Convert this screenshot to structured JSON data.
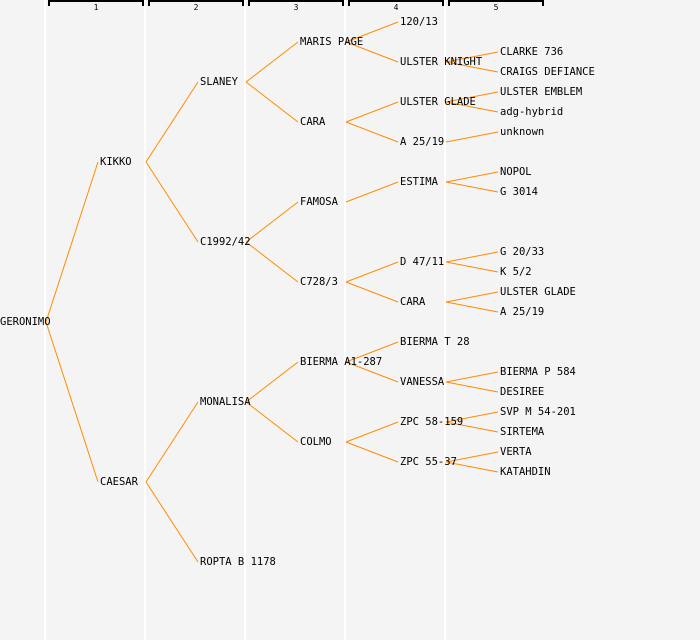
{
  "generation_labels": [
    "1",
    "2",
    "3",
    "4",
    "5"
  ],
  "line_color": "#ff8c00",
  "nodes": [
    {
      "id": 0,
      "name": "GERONIMO",
      "gen": 0,
      "parent": null
    },
    {
      "id": 1,
      "name": "KIKKO",
      "gen": 1,
      "parent": 0
    },
    {
      "id": 2,
      "name": "CAESAR",
      "gen": 1,
      "parent": 0
    },
    {
      "id": 3,
      "name": "SLANEY",
      "gen": 2,
      "parent": 1
    },
    {
      "id": 4,
      "name": "C1992/42",
      "gen": 2,
      "parent": 1
    },
    {
      "id": 5,
      "name": "MONALISA",
      "gen": 2,
      "parent": 2
    },
    {
      "id": 6,
      "name": "ROPTA B 1178",
      "gen": 2,
      "parent": 2
    },
    {
      "id": 7,
      "name": "MARIS PAGE",
      "gen": 3,
      "parent": 3
    },
    {
      "id": 8,
      "name": "CARA",
      "gen": 3,
      "parent": 3
    },
    {
      "id": 9,
      "name": "FAMOSA",
      "gen": 3,
      "parent": 4
    },
    {
      "id": 10,
      "name": "C728/3",
      "gen": 3,
      "parent": 4
    },
    {
      "id": 11,
      "name": "BIERMA A1-287",
      "gen": 3,
      "parent": 5
    },
    {
      "id": 12,
      "name": "COLMO",
      "gen": 3,
      "parent": 5
    },
    {
      "id": 13,
      "name": "120/13",
      "gen": 4,
      "parent": 7
    },
    {
      "id": 14,
      "name": "ULSTER KNIGHT",
      "gen": 4,
      "parent": 7
    },
    {
      "id": 15,
      "name": "ULSTER GLADE",
      "gen": 4,
      "parent": 8
    },
    {
      "id": 16,
      "name": "A 25/19",
      "gen": 4,
      "parent": 8
    },
    {
      "id": 17,
      "name": "ESTIMA",
      "gen": 4,
      "parent": 9
    },
    {
      "id": 18,
      "name": "D 47/11",
      "gen": 4,
      "parent": 10
    },
    {
      "id": 19,
      "name": "CARA",
      "gen": 4,
      "parent": 10
    },
    {
      "id": 20,
      "name": "BIERMA T 28",
      "gen": 4,
      "parent": 11
    },
    {
      "id": 21,
      "name": "VANESSA",
      "gen": 4,
      "parent": 11
    },
    {
      "id": 22,
      "name": "ZPC 58-159",
      "gen": 4,
      "parent": 12
    },
    {
      "id": 23,
      "name": "ZPC 55-37",
      "gen": 4,
      "parent": 12
    },
    {
      "id": 24,
      "name": "CLARKE 736",
      "gen": 5,
      "parent": 14
    },
    {
      "id": 25,
      "name": "CRAIGS DEFIANCE",
      "gen": 5,
      "parent": 14
    },
    {
      "id": 26,
      "name": "ULSTER EMBLEM",
      "gen": 5,
      "parent": 15
    },
    {
      "id": 27,
      "name": "adg-hybrid",
      "gen": 5,
      "parent": 15
    },
    {
      "id": 28,
      "name": "unknown",
      "gen": 5,
      "parent": 16
    },
    {
      "id": 29,
      "name": "NOPOL",
      "gen": 5,
      "parent": 17
    },
    {
      "id": 30,
      "name": "G 3014",
      "gen": 5,
      "parent": 17
    },
    {
      "id": 31,
      "name": "G 20/33",
      "gen": 5,
      "parent": 18
    },
    {
      "id": 32,
      "name": "K 5/2",
      "gen": 5,
      "parent": 18
    },
    {
      "id": 33,
      "name": "ULSTER GLADE",
      "gen": 5,
      "parent": 19
    },
    {
      "id": 34,
      "name": "A 25/19",
      "gen": 5,
      "parent": 19
    },
    {
      "id": 35,
      "name": "BIERMA P 584",
      "gen": 5,
      "parent": 21
    },
    {
      "id": 36,
      "name": "DESIREE",
      "gen": 5,
      "parent": 21
    },
    {
      "id": 37,
      "name": "SVP M 54-201",
      "gen": 5,
      "parent": 22
    },
    {
      "id": 38,
      "name": "SIRTEMA",
      "gen": 5,
      "parent": 22
    },
    {
      "id": 39,
      "name": "VERTA",
      "gen": 5,
      "parent": 23
    },
    {
      "id": 40,
      "name": "KATAHDIN",
      "gen": 5,
      "parent": 23
    }
  ]
}
